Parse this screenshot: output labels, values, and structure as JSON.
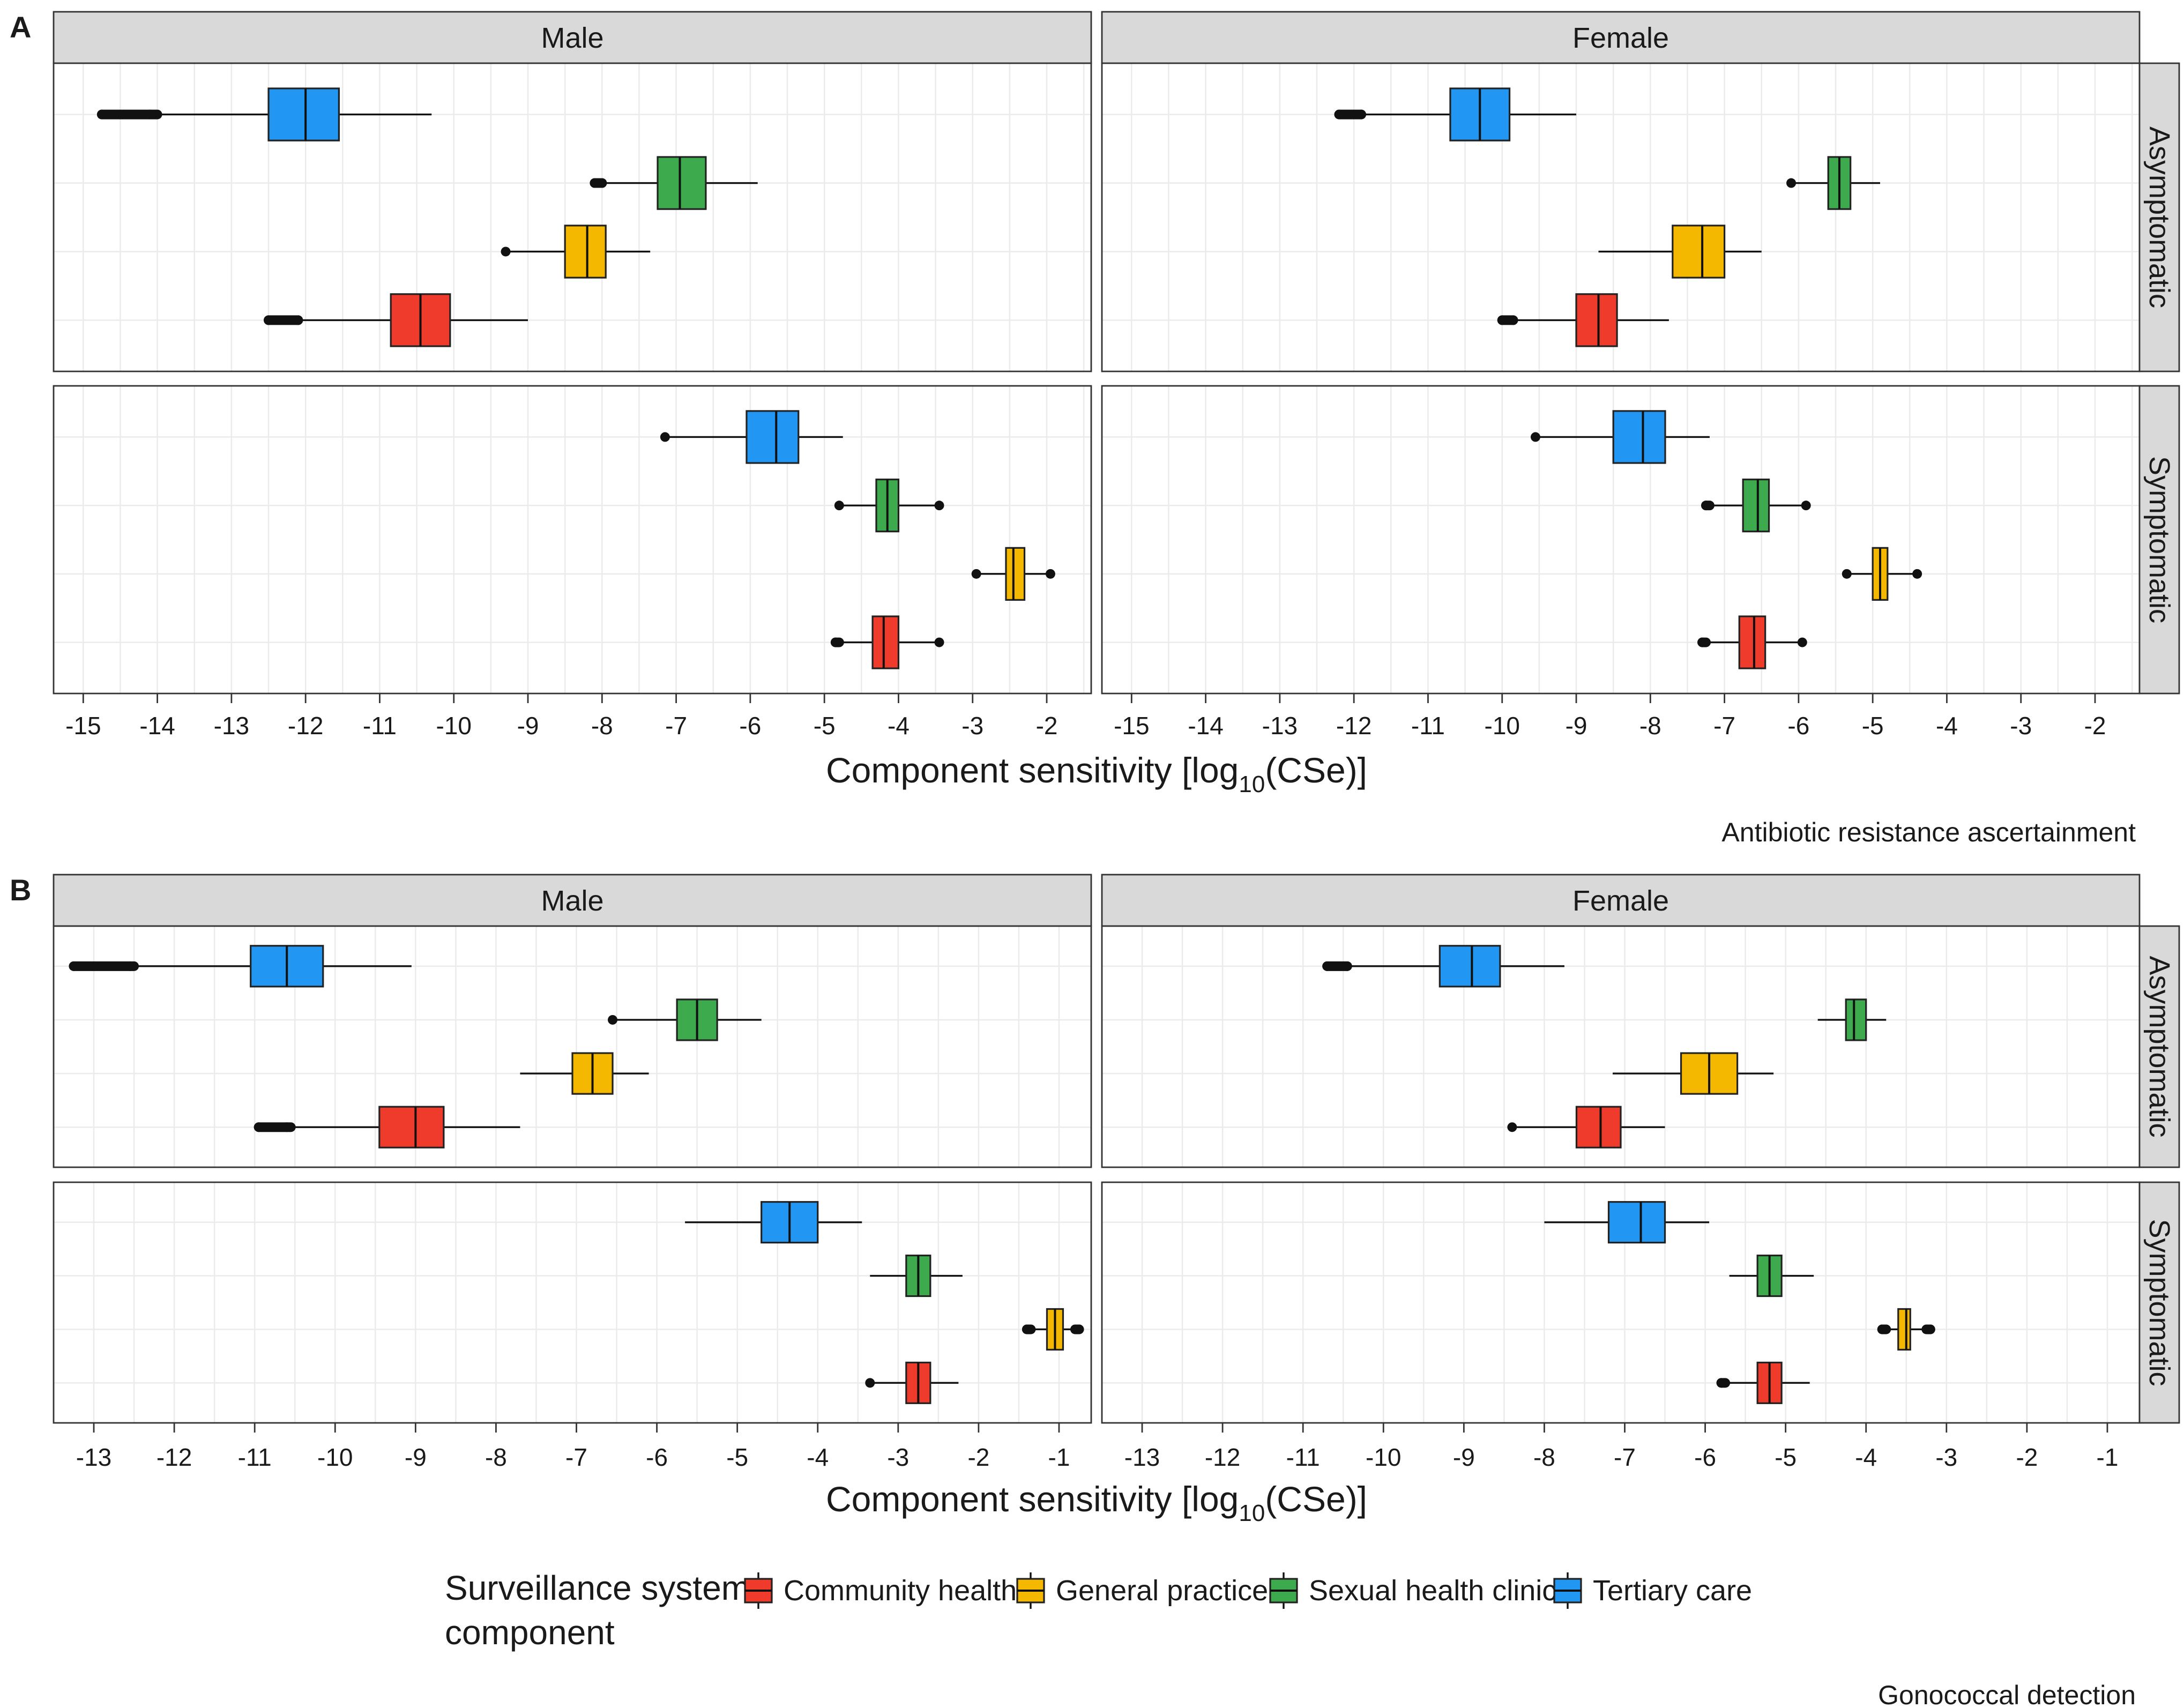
{
  "figure": {
    "panel_a_label": "A",
    "panel_b_label": "B",
    "caption_a": "Antibiotic resistance ascertainment",
    "caption_b": "Gonococcal detection",
    "legend_title_line1": "Surveillance system",
    "legend_title_line2": "component",
    "legend_items": [
      {
        "label": "Community health",
        "color": "#ef3b2c"
      },
      {
        "label": "General practice",
        "color": "#f5b800"
      },
      {
        "label": "Sexual health clinic",
        "color": "#3daa4e"
      },
      {
        "label": "Tertiary care",
        "color": "#2196f3"
      }
    ]
  },
  "chart_data": [
    {
      "type": "boxplot",
      "panel": "A",
      "title": "Antibiotic resistance ascertainment",
      "xlabel": "Component sensitivity [log10(CSe)]",
      "xlabel_main": "Component sensitivity [log",
      "xlabel_sub": "10",
      "xlabel_end": "(CSe)]",
      "xlim": [
        -15.4,
        -1.4
      ],
      "xticks": [
        -15,
        -14,
        -13,
        -12,
        -11,
        -10,
        -9,
        -8,
        -7,
        -6,
        -5,
        -4,
        -3,
        -2
      ],
      "columns": [
        "Male",
        "Female"
      ],
      "rows": [
        "Asymptomatic",
        "Symptomatic"
      ],
      "categories": [
        "Tertiary care",
        "Sexual health clinic",
        "General practice",
        "Community health"
      ],
      "colors": [
        "#2196f3",
        "#3daa4e",
        "#f5b800",
        "#ef3b2c"
      ],
      "panels": [
        {
          "column": "Male",
          "row": "Asymptomatic",
          "boxes": [
            {
              "category": "Tertiary care",
              "whisker_low": -14.0,
              "q1": -12.5,
              "median": -12.0,
              "q3": -11.55,
              "whisker_high": -10.3,
              "outliers_low": [
                -14.75,
                -14.1
              ],
              "outliers_high": []
            },
            {
              "category": "Sexual health clinic",
              "whisker_low": -8.0,
              "q1": -7.25,
              "median": -6.95,
              "q3": -6.6,
              "whisker_high": -5.9,
              "outliers_low": [
                -8.1,
                -8.0
              ],
              "outliers_high": []
            },
            {
              "category": "General practice",
              "whisker_low": -9.3,
              "q1": -8.5,
              "median": -8.2,
              "q3": -7.95,
              "whisker_high": -7.35,
              "outliers_low": [
                -9.3
              ],
              "outliers_high": []
            },
            {
              "category": "Community health",
              "whisker_low": -12.1,
              "q1": -10.85,
              "median": -10.45,
              "q3": -10.05,
              "whisker_high": -9.0,
              "outliers_low": [
                -12.5,
                -12.1
              ],
              "outliers_high": []
            }
          ]
        },
        {
          "column": "Female",
          "row": "Asymptomatic",
          "boxes": [
            {
              "category": "Tertiary care",
              "whisker_low": -11.9,
              "q1": -10.7,
              "median": -10.3,
              "q3": -9.9,
              "whisker_high": -9.0,
              "outliers_low": [
                -12.2,
                -11.9
              ],
              "outliers_high": []
            },
            {
              "category": "Sexual health clinic",
              "whisker_low": -6.1,
              "q1": -5.6,
              "median": -5.45,
              "q3": -5.3,
              "whisker_high": -4.9,
              "outliers_low": [
                -6.1
              ],
              "outliers_high": []
            },
            {
              "category": "General practice",
              "whisker_low": -8.7,
              "q1": -7.7,
              "median": -7.3,
              "q3": -7.0,
              "whisker_high": -6.5,
              "outliers_low": [],
              "outliers_high": []
            },
            {
              "category": "Community health",
              "whisker_low": -9.85,
              "q1": -9.0,
              "median": -8.7,
              "q3": -8.45,
              "whisker_high": -7.75,
              "outliers_low": [
                -10.0,
                -9.85
              ],
              "outliers_high": []
            }
          ]
        },
        {
          "column": "Male",
          "row": "Symptomatic",
          "boxes": [
            {
              "category": "Tertiary care",
              "whisker_low": -7.15,
              "q1": -6.05,
              "median": -5.65,
              "q3": -5.35,
              "whisker_high": -4.75,
              "outliers_low": [
                -7.15
              ],
              "outliers_high": []
            },
            {
              "category": "Sexual health clinic",
              "whisker_low": -4.8,
              "q1": -4.3,
              "median": -4.15,
              "q3": -4.0,
              "whisker_high": -3.45,
              "outliers_low": [
                -4.8
              ],
              "outliers_high": [
                -3.45
              ]
            },
            {
              "category": "General practice",
              "whisker_low": -2.95,
              "q1": -2.55,
              "median": -2.45,
              "q3": -2.3,
              "whisker_high": -1.95,
              "outliers_low": [
                -2.95
              ],
              "outliers_high": [
                -1.95
              ]
            },
            {
              "category": "Community health",
              "whisker_low": -4.8,
              "q1": -4.35,
              "median": -4.2,
              "q3": -4.0,
              "whisker_high": -3.45,
              "outliers_low": [
                -4.85
              ],
              "outliers_high": [
                -3.45
              ]
            }
          ]
        },
        {
          "column": "Female",
          "row": "Symptomatic",
          "boxes": [
            {
              "category": "Tertiary care",
              "whisker_low": -9.55,
              "q1": -8.5,
              "median": -8.1,
              "q3": -7.8,
              "whisker_high": -7.2,
              "outliers_low": [
                -9.55
              ],
              "outliers_high": []
            },
            {
              "category": "Sexual health clinic",
              "whisker_low": -7.2,
              "q1": -6.75,
              "median": -6.55,
              "q3": -6.4,
              "whisker_high": -5.9,
              "outliers_low": [
                -7.25
              ],
              "outliers_high": [
                -5.9
              ]
            },
            {
              "category": "General practice",
              "whisker_low": -5.35,
              "q1": -5.0,
              "median": -4.9,
              "q3": -4.8,
              "whisker_high": -4.4,
              "outliers_low": [
                -5.35
              ],
              "outliers_high": [
                -4.4
              ]
            },
            {
              "category": "Community health",
              "whisker_low": -7.25,
              "q1": -6.8,
              "median": -6.6,
              "q3": -6.45,
              "whisker_high": -5.95,
              "outliers_low": [
                -7.3
              ],
              "outliers_high": [
                -5.95
              ]
            }
          ]
        }
      ]
    },
    {
      "type": "boxplot",
      "panel": "B",
      "title": "Gonococcal detection",
      "xlabel": "Component sensitivity [log10(CSe)]",
      "xlabel_main": "Component sensitivity [log",
      "xlabel_sub": "10",
      "xlabel_end": "(CSe)]",
      "xlim": [
        -13.5,
        -0.6
      ],
      "xticks": [
        -13,
        -12,
        -11,
        -10,
        -9,
        -8,
        -7,
        -6,
        -5,
        -4,
        -3,
        -2,
        -1
      ],
      "columns": [
        "Male",
        "Female"
      ],
      "rows": [
        "Asymptomatic",
        "Symptomatic"
      ],
      "categories": [
        "Tertiary care",
        "Sexual health clinic",
        "General practice",
        "Community health"
      ],
      "colors": [
        "#2196f3",
        "#3daa4e",
        "#f5b800",
        "#ef3b2c"
      ],
      "panels": [
        {
          "column": "Male",
          "row": "Asymptomatic",
          "boxes": [
            {
              "category": "Tertiary care",
              "whisker_low": -12.5,
              "q1": -11.05,
              "median": -10.6,
              "q3": -10.15,
              "whisker_high": -9.05,
              "outliers_low": [
                -13.25,
                -12.55
              ],
              "outliers_high": []
            },
            {
              "category": "Sexual health clinic",
              "whisker_low": -6.55,
              "q1": -5.75,
              "median": -5.5,
              "q3": -5.25,
              "whisker_high": -4.7,
              "outliers_low": [
                -6.55
              ],
              "outliers_high": []
            },
            {
              "category": "General practice",
              "whisker_low": -7.7,
              "q1": -7.05,
              "median": -6.8,
              "q3": -6.55,
              "whisker_high": -6.1,
              "outliers_low": [],
              "outliers_high": []
            },
            {
              "category": "Community health",
              "whisker_low": -10.55,
              "q1": -9.45,
              "median": -9.0,
              "q3": -8.65,
              "whisker_high": -7.7,
              "outliers_low": [
                -10.95,
                -10.6
              ],
              "outliers_high": []
            }
          ]
        },
        {
          "column": "Female",
          "row": "Asymptomatic",
          "boxes": [
            {
              "category": "Tertiary care",
              "whisker_low": -10.45,
              "q1": -9.3,
              "median": -8.9,
              "q3": -8.55,
              "whisker_high": -7.75,
              "outliers_low": [
                -10.7,
                -10.45
              ],
              "outliers_high": []
            },
            {
              "category": "Sexual health clinic",
              "whisker_low": -4.6,
              "q1": -4.25,
              "median": -4.15,
              "q3": -4.0,
              "whisker_high": -3.75,
              "outliers_low": [],
              "outliers_high": []
            },
            {
              "category": "General practice",
              "whisker_low": -7.15,
              "q1": -6.3,
              "median": -5.95,
              "q3": -5.6,
              "whisker_high": -5.15,
              "outliers_low": [],
              "outliers_high": []
            },
            {
              "category": "Community health",
              "whisker_low": -8.4,
              "q1": -7.6,
              "median": -7.3,
              "q3": -7.05,
              "whisker_high": -6.5,
              "outliers_low": [
                -8.4
              ],
              "outliers_high": []
            }
          ]
        },
        {
          "column": "Male",
          "row": "Symptomatic",
          "boxes": [
            {
              "category": "Tertiary care",
              "whisker_low": -5.65,
              "q1": -4.7,
              "median": -4.35,
              "q3": -4.0,
              "whisker_high": -3.45,
              "outliers_low": [],
              "outliers_high": []
            },
            {
              "category": "Sexual health clinic",
              "whisker_low": -3.35,
              "q1": -2.9,
              "median": -2.75,
              "q3": -2.6,
              "whisker_high": -2.2,
              "outliers_low": [],
              "outliers_high": []
            },
            {
              "category": "General practice",
              "whisker_low": -1.35,
              "q1": -1.15,
              "median": -1.05,
              "q3": -0.95,
              "whisker_high": -0.8,
              "outliers_low": [
                -1.4
              ],
              "outliers_high": [
                -0.75
              ]
            },
            {
              "category": "Community health",
              "whisker_low": -3.35,
              "q1": -2.9,
              "median": -2.75,
              "q3": -2.6,
              "whisker_high": -2.25,
              "outliers_low": [
                -3.35
              ],
              "outliers_high": []
            }
          ]
        },
        {
          "column": "Female",
          "row": "Symptomatic",
          "boxes": [
            {
              "category": "Tertiary care",
              "whisker_low": -8.0,
              "q1": -7.2,
              "median": -6.8,
              "q3": -6.5,
              "whisker_high": -5.95,
              "outliers_low": [],
              "outliers_high": []
            },
            {
              "category": "Sexual health clinic",
              "whisker_low": -5.7,
              "q1": -5.35,
              "median": -5.2,
              "q3": -5.05,
              "whisker_high": -4.65,
              "outliers_low": [],
              "outliers_high": []
            },
            {
              "category": "General practice",
              "whisker_low": -3.75,
              "q1": -3.6,
              "median": -3.5,
              "q3": -3.45,
              "whisker_high": -3.25,
              "outliers_low": [
                -3.8
              ],
              "outliers_high": [
                -3.2
              ]
            },
            {
              "category": "Community health",
              "whisker_low": -5.75,
              "q1": -5.35,
              "median": -5.2,
              "q3": -5.05,
              "whisker_high": -4.7,
              "outliers_low": [
                -5.8
              ],
              "outliers_high": []
            }
          ]
        }
      ]
    }
  ]
}
